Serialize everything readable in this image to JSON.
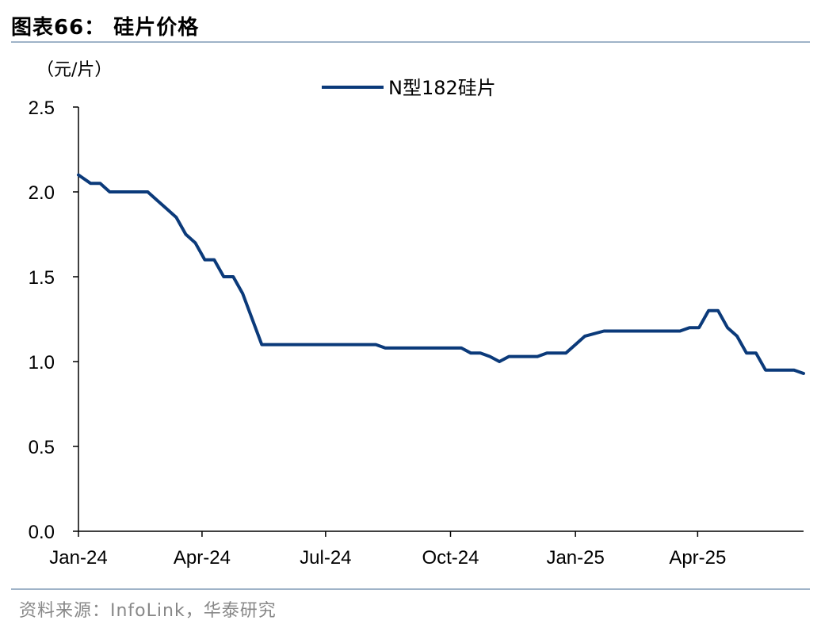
{
  "header": {
    "title": "图表66： 硅片价格"
  },
  "footer": {
    "source": "资料来源：InfoLink，华泰研究"
  },
  "colors": {
    "series": "#0b3a7a",
    "axis": "#000000",
    "rule": "#9fb3c8"
  },
  "chart_data": {
    "type": "line",
    "title": "",
    "ylabel": "（元/片）",
    "xlabel": "",
    "ylim": [
      0,
      2.5
    ],
    "yticks": [
      "0.0",
      "0.5",
      "1.0",
      "1.5",
      "2.0",
      "2.5"
    ],
    "xticks": [
      "Jan-24",
      "Apr-24",
      "Jul-24",
      "Oct-24",
      "Jan-25",
      "Apr-25"
    ],
    "grid": false,
    "legend": "top-center",
    "series": [
      {
        "name": "N型182硅片",
        "color": "#0b3a7a",
        "x": [
          "2024-01-01",
          "2024-01-10",
          "2024-01-17",
          "2024-01-24",
          "2024-01-31",
          "2024-02-14",
          "2024-02-21",
          "2024-02-28",
          "2024-03-06",
          "2024-03-13",
          "2024-03-20",
          "2024-03-27",
          "2024-04-03",
          "2024-04-10",
          "2024-04-17",
          "2024-04-24",
          "2024-05-01",
          "2024-05-08",
          "2024-05-15",
          "2024-05-22",
          "2024-06-05",
          "2024-06-19",
          "2024-07-03",
          "2024-07-17",
          "2024-07-31",
          "2024-08-07",
          "2024-08-14",
          "2024-08-21",
          "2024-09-04",
          "2024-09-18",
          "2024-10-02",
          "2024-10-09",
          "2024-10-16",
          "2024-10-23",
          "2024-10-30",
          "2024-11-06",
          "2024-11-13",
          "2024-11-20",
          "2024-11-27",
          "2024-12-04",
          "2024-12-11",
          "2024-12-18",
          "2024-12-25",
          "2025-01-01",
          "2025-01-08",
          "2025-01-22",
          "2025-02-05",
          "2025-02-19",
          "2025-03-05",
          "2025-03-12",
          "2025-03-19",
          "2025-03-26",
          "2025-04-02",
          "2025-04-09",
          "2025-04-16",
          "2025-04-23",
          "2025-04-30",
          "2025-05-07",
          "2025-05-14",
          "2025-05-21",
          "2025-05-28",
          "2025-06-04",
          "2025-06-11",
          "2025-06-18"
        ],
        "values": [
          2.1,
          2.05,
          2.05,
          2.0,
          2.0,
          2.0,
          2.0,
          1.95,
          1.9,
          1.85,
          1.75,
          1.7,
          1.6,
          1.6,
          1.5,
          1.5,
          1.4,
          1.25,
          1.1,
          1.1,
          1.1,
          1.1,
          1.1,
          1.1,
          1.1,
          1.1,
          1.08,
          1.08,
          1.08,
          1.08,
          1.08,
          1.08,
          1.05,
          1.05,
          1.03,
          1.0,
          1.03,
          1.03,
          1.03,
          1.03,
          1.05,
          1.05,
          1.05,
          1.1,
          1.15,
          1.18,
          1.18,
          1.18,
          1.18,
          1.18,
          1.18,
          1.2,
          1.2,
          1.3,
          1.3,
          1.2,
          1.15,
          1.05,
          1.05,
          0.95,
          0.95,
          0.95,
          0.95,
          0.93
        ]
      }
    ]
  }
}
